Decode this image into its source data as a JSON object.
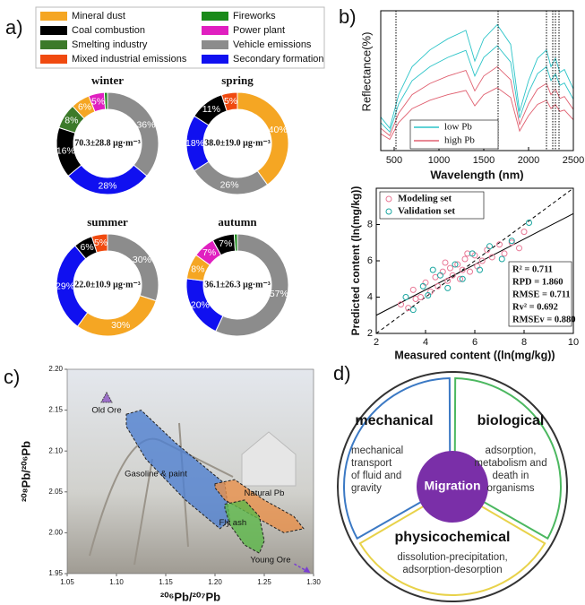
{
  "panel_labels": [
    "a)",
    "b)",
    "c)",
    "d)"
  ],
  "chart_data": [
    {
      "type": "donut",
      "categories": [
        "Mineral dust",
        "Coal combustion",
        "Smelting industry",
        "Mixed industrial emissions",
        "Fireworks",
        "Power plant",
        "Vehicle emissions",
        "Secondary formation"
      ],
      "colors": [
        "#f5a623",
        "#000000",
        "#3c7a2a",
        "#f04a10",
        "#1a8a1a",
        "#e020c0",
        "#8c8c8c",
        "#1010f0"
      ],
      "donuts": [
        {
          "title": "winter",
          "center_label": "70.3±28.8 μg·m⁻³",
          "values": [
            6,
            16,
            8,
            null,
            1,
            5,
            36,
            28
          ],
          "value_labels": [
            "6%",
            "16%",
            "8%",
            null,
            null,
            "5%",
            "36%",
            "28%"
          ]
        },
        {
          "title": "spring",
          "center_label": "38.0±19.0 μg·m⁻³",
          "values": [
            40,
            11,
            null,
            5,
            null,
            null,
            26,
            18
          ],
          "value_labels": [
            "40%",
            "11%",
            null,
            "5%",
            null,
            null,
            "26%",
            "18%"
          ]
        },
        {
          "title": "summer",
          "center_label": "22.0±10.9 μg·m⁻³",
          "values": [
            30,
            6,
            null,
            5,
            null,
            null,
            30,
            29
          ],
          "value_labels": [
            "30%",
            "6%",
            null,
            "5%",
            null,
            null,
            "30%",
            "29%"
          ]
        },
        {
          "title": "autumn",
          "center_label": "36.1±26.3 μg·m⁻³",
          "values": [
            8,
            7,
            null,
            null,
            1,
            7,
            57,
            20
          ],
          "value_labels": [
            "8%",
            "7%",
            null,
            null,
            null,
            "7%",
            "57%",
            "20%"
          ]
        }
      ]
    },
    {
      "type": "line",
      "xlabel": "Wavelength (nm)",
      "ylabel": "Reflectance(%)",
      "x": [
        350,
        450,
        550,
        700,
        900,
        1100,
        1300,
        1400,
        1500,
        1650,
        1800,
        1900,
        2000,
        2100,
        2200,
        2250,
        2300,
        2350,
        2400,
        2500
      ],
      "xlim": [
        350,
        2500
      ],
      "xticks": [
        500,
        1000,
        1500,
        2000,
        2500
      ],
      "ylim": [
        0,
        60
      ],
      "vlines": [
        520,
        1660,
        2200,
        2270,
        2300,
        2340
      ],
      "series": [
        {
          "name": "low Pb",
          "color": "#2cc4c8",
          "values": [
            [
              14.4,
              9.6,
              24,
              36,
              43.2,
              48,
              51.6,
              38.4,
              48,
              54,
              45.6,
              16.8,
              30,
              39.6,
              43.2,
              36,
              39.6,
              33.6,
              34.8,
              26.4
            ],
            [
              12,
              8,
              20,
              30,
              36,
              40,
              43,
              32,
              40,
              45,
              38,
              14,
              25,
              33,
              36,
              30,
              33,
              28,
              29,
              22
            ]
          ]
        },
        {
          "name": "high Pb",
          "color": "#e06070",
          "values": [
            [
              9.6,
              6.4,
              16,
              24,
              28.8,
              32,
              34.4,
              25.6,
              32,
              36,
              30.4,
              11.2,
              20,
              26.4,
              28.8,
              24,
              26.4,
              22.4,
              23.2,
              17.6
            ],
            [
              7.2,
              4.8,
              12,
              18,
              21.6,
              24,
              25.8,
              19.2,
              24,
              27,
              22.8,
              8.4,
              15,
              19.8,
              21.6,
              18,
              19.8,
              16.8,
              17.4,
              13.2
            ]
          ]
        }
      ]
    },
    {
      "type": "scatter",
      "xlabel": "Measured content ((ln(mg/kg))",
      "ylabel": "Predicted content (ln(mg/kg))",
      "xlim": [
        2,
        10
      ],
      "xticks": [
        2,
        4,
        6,
        8,
        10
      ],
      "ylim": [
        2,
        10
      ],
      "yticks": [
        2,
        4,
        6,
        8
      ],
      "identity_line": true,
      "fit_line": {
        "slope": 0.7,
        "intercept": 1.6
      },
      "stats": [
        "R² = 0.711",
        "RPD = 1.860",
        "RMSE = 0.711",
        "Rv² = 0.692",
        "RMSEv = 0.880"
      ],
      "series": [
        {
          "name": "Modeling set",
          "color": "#e87896",
          "x": [
            3.0,
            3.3,
            3.5,
            3.8,
            4.0,
            4.2,
            4.4,
            4.5,
            4.7,
            4.9,
            5.0,
            5.1,
            5.3,
            5.4,
            5.5,
            5.6,
            5.8,
            6.0,
            6.1,
            6.3,
            6.5,
            6.7,
            7.0,
            7.2,
            7.5,
            7.8,
            8.0,
            3.6,
            4.8,
            5.7
          ],
          "values": [
            3.6,
            3.4,
            4.4,
            4.0,
            4.8,
            4.3,
            5.1,
            4.6,
            5.4,
            4.9,
            5.6,
            5.2,
            5.8,
            5.0,
            5.5,
            6.1,
            5.4,
            6.3,
            5.7,
            6.0,
            6.6,
            6.2,
            6.9,
            6.4,
            7.0,
            6.7,
            7.6,
            3.9,
            5.9,
            6.4
          ]
        },
        {
          "name": "Validation set",
          "color": "#1aa6a0",
          "x": [
            3.2,
            3.5,
            3.9,
            4.1,
            4.6,
            4.9,
            5.2,
            5.5,
            5.9,
            6.2,
            6.6,
            7.1,
            7.5,
            8.2,
            4.3
          ],
          "values": [
            4.0,
            3.3,
            4.6,
            4.1,
            5.2,
            4.5,
            5.8,
            5.0,
            6.4,
            5.5,
            6.8,
            6.1,
            7.1,
            8.1,
            5.5
          ]
        }
      ]
    },
    {
      "type": "region",
      "xlabel": "²⁰⁶Pb/²⁰⁷Pb",
      "ylabel": "²⁰⁸Pb/²⁰⁶Pb",
      "xlim": [
        1.05,
        1.3
      ],
      "xticks": [
        {
          "value": 1.05,
          "label": "1.05"
        },
        {
          "value": 1.1,
          "label": "1.10"
        },
        {
          "value": 1.15,
          "label": "1.15"
        },
        {
          "value": 1.2,
          "label": "1.20"
        },
        {
          "value": 1.25,
          "label": "1.25"
        },
        {
          "value": 1.3,
          "label": "1.30"
        }
      ],
      "ylim": [
        1.95,
        2.2
      ],
      "yticks": [
        {
          "value": 1.95,
          "label": "1.95"
        },
        {
          "value": 2.0,
          "label": "2.00"
        },
        {
          "value": 2.05,
          "label": "2.05"
        },
        {
          "value": 2.1,
          "label": "2.10"
        },
        {
          "value": 2.15,
          "label": "2.15"
        },
        {
          "value": 2.2,
          "label": "2.20"
        }
      ],
      "regions": [
        {
          "name": "Gasoline & paint",
          "color": "#4f7fd0",
          "x": [
            1.11,
            1.125,
            1.16,
            1.21,
            1.215,
            1.205,
            1.17,
            1.13,
            1.11
          ],
          "y": [
            2.145,
            2.15,
            2.11,
            2.06,
            2.015,
            2.005,
            2.04,
            2.09,
            2.13
          ]
        },
        {
          "name": "Natural Pb",
          "color": "#e8904a",
          "x": [
            1.2,
            1.22,
            1.25,
            1.28,
            1.29,
            1.27,
            1.24,
            1.21,
            1.2
          ],
          "y": [
            2.06,
            2.065,
            2.04,
            2.02,
            2.005,
            2.0,
            2.02,
            2.04,
            2.055
          ]
        },
        {
          "name": "Fly ash",
          "color": "#5cb84a",
          "x": [
            1.21,
            1.23,
            1.245,
            1.25,
            1.245,
            1.23,
            1.215,
            1.21
          ],
          "y": [
            2.035,
            2.04,
            2.02,
            1.99,
            1.975,
            1.985,
            2.01,
            2.03
          ]
        }
      ],
      "points": [
        {
          "name": "Old Ore",
          "color": "#9b6fc8",
          "x": 1.09,
          "y": 2.165
        },
        {
          "name": "Young Ore",
          "color": "#7a3fd0",
          "x": 1.295,
          "y": 1.952
        }
      ]
    }
  ],
  "diagram": {
    "center": "Migration",
    "sectors": [
      {
        "heading": "mechanical",
        "lines": [
          "mechanical",
          "transport",
          "of fluid and",
          "gravity"
        ]
      },
      {
        "heading": "biological",
        "lines": [
          "adsorption,",
          "metabolism and",
          "death in",
          "organisms"
        ]
      },
      {
        "heading": "physicochemical",
        "lines": [
          "dissolution-precipitation,",
          "adsorption-desorption"
        ]
      }
    ]
  }
}
